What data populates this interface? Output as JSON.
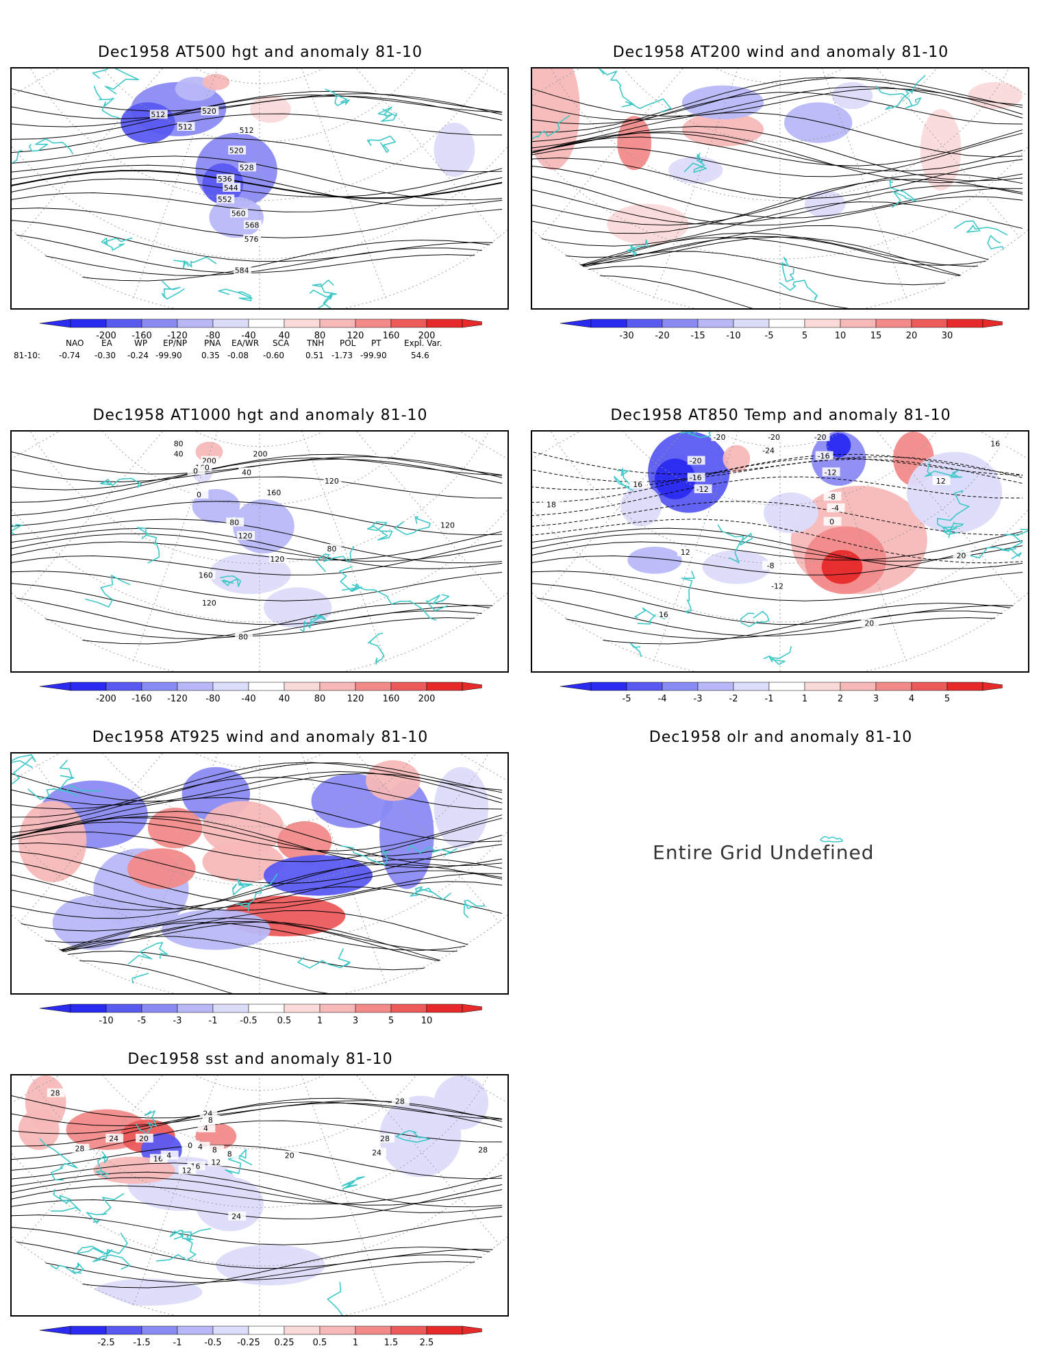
{
  "colors": {
    "coast": "#3cc7c7",
    "neg": [
      "#2a2af0",
      "#5a5af2",
      "#8a8af4",
      "#b8b8f8",
      "#dcdcfb"
    ],
    "pos": [
      "#fbdada",
      "#f7b8b8",
      "#f28a8a",
      "#ec5a5a",
      "#e62a2a"
    ],
    "contour": "#000000",
    "grid": "#9a9a9a"
  },
  "panels": {
    "z500": {
      "title": "Dec1958 AT500 hgt and anomaly 81-10",
      "contour_labels": [
        "512",
        "512",
        "520",
        "512",
        "520",
        "528",
        "536",
        "544",
        "552",
        "560",
        "568",
        "576",
        "584"
      ],
      "colorbar": [
        "-200",
        "-160",
        "-120",
        "-80",
        "-40",
        "40",
        "80",
        "120",
        "160",
        "200"
      ]
    },
    "wind200": {
      "title": "Dec1958 AT200 wind and anomaly 81-10",
      "colorbar": [
        "-30",
        "-20",
        "-15",
        "-10",
        "-5",
        "5",
        "10",
        "15",
        "20",
        "30"
      ]
    },
    "z1000": {
      "title": "Dec1958 AT1000 hgt and anomaly 81-10",
      "contour_labels": [
        "80",
        "40",
        "200",
        "160",
        "0",
        "200",
        "160",
        "120",
        "40",
        "0",
        "80",
        "120",
        "120",
        "80",
        "120",
        "160",
        "120",
        "80"
      ],
      "colorbar": [
        "-200",
        "-160",
        "-120",
        "-80",
        "-40",
        "40",
        "80",
        "120",
        "160",
        "200"
      ]
    },
    "t850": {
      "title": "Dec1958 AT850 Temp and anomaly 81-10",
      "contour_labels": [
        "-20",
        "-20",
        "-20",
        "-24",
        "-16",
        "-20",
        "-16",
        "-12",
        "-12",
        "-8",
        "-4",
        "0",
        "16",
        "18",
        "12",
        "16",
        "12",
        "-8",
        "-12",
        "16",
        "20",
        "20"
      ],
      "colorbar": [
        "-5",
        "-4",
        "-3",
        "-2",
        "-1",
        "1",
        "2",
        "3",
        "4",
        "5"
      ]
    },
    "wind925": {
      "title": "Dec1958 AT925 wind and anomaly 81-10",
      "colorbar": [
        "-10",
        "-5",
        "-3",
        "-1",
        "-0.5",
        "0.5",
        "1",
        "3",
        "5",
        "10"
      ]
    },
    "olr": {
      "title": "Dec1958 olr and anomaly 81-10",
      "message": "Entire Grid Undefined"
    },
    "sst": {
      "title": "Dec1958 sst and anomaly 81-10",
      "contour_labels": [
        "28",
        "24",
        "24",
        "28",
        "20",
        "16",
        "4",
        "0",
        "4",
        "8",
        "8",
        "12",
        "16",
        "20",
        "24",
        "28",
        "28",
        "28",
        "24",
        "4",
        "8",
        "12"
      ],
      "colorbar": [
        "-2.5",
        "-1.5",
        "-1",
        "-0.5",
        "-0.25",
        "0.25",
        "0.5",
        "1",
        "1.5",
        "2.5"
      ]
    }
  },
  "indices": {
    "headers": [
      "NAO",
      "EA",
      "WP",
      "EP/NP",
      "PNA",
      "EA/WR",
      "SCA",
      "TNH",
      "POL",
      "PT",
      "Expl. Var."
    ],
    "row_label": "81-10:",
    "values": [
      "-0.74",
      "-0.30",
      "-0.24",
      "-99.90",
      "0.35",
      "-0.08",
      "-0.60",
      "0.51",
      "-1.73",
      "-99.90",
      "54.6"
    ]
  }
}
